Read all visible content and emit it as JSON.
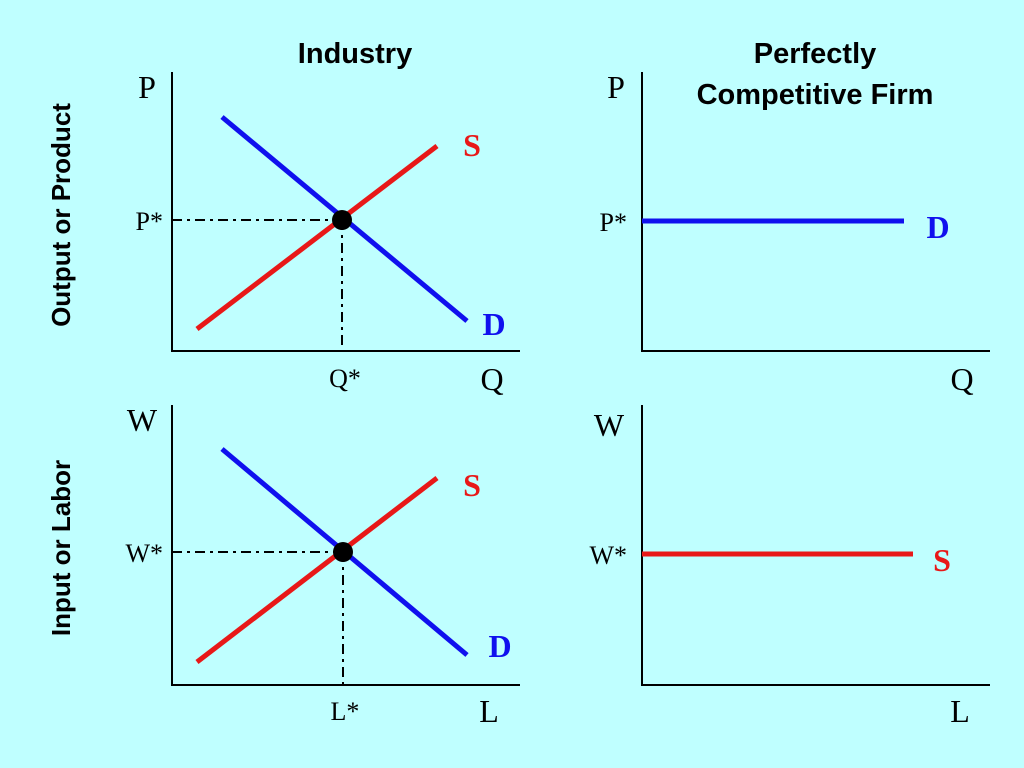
{
  "headers": {
    "industry": "Industry",
    "firm_line1": "Perfectly",
    "firm_line2": "Competitive Firm"
  },
  "row_labels": {
    "top": "Output or Product",
    "bottom": "Input or Labor"
  },
  "panels": {
    "industry_output": {
      "y_axis": "P",
      "x_axis": "Q",
      "eq_y": "P*",
      "eq_x": "Q*",
      "supply": "S",
      "demand": "D"
    },
    "firm_output": {
      "y_axis": "P",
      "x_axis": "Q",
      "eq_y": "P*",
      "curve": "D"
    },
    "industry_input": {
      "y_axis": "W",
      "x_axis": "L",
      "eq_y": "W*",
      "eq_x": "L*",
      "supply": "S",
      "demand": "D"
    },
    "firm_input": {
      "y_axis": "W",
      "x_axis": "L",
      "eq_y": "W*",
      "curve": "S"
    }
  },
  "colors": {
    "supply": "#e81818",
    "demand": "#1010ee",
    "axis": "#000000",
    "background": "#bfffff"
  }
}
